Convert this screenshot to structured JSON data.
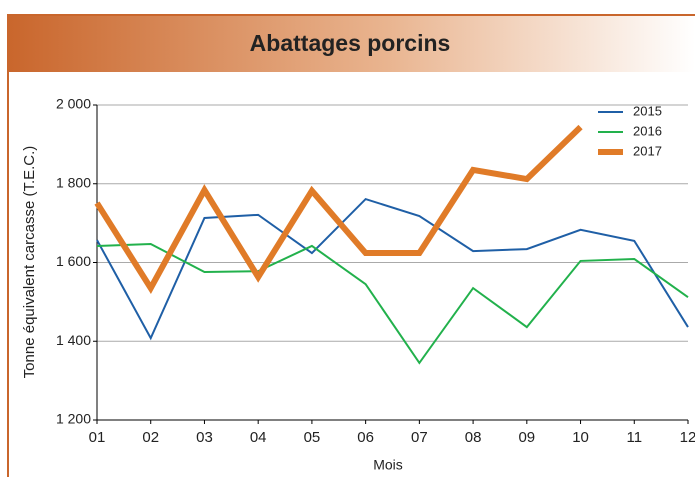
{
  "chart_data": {
    "type": "line",
    "title": "Abattages porcins",
    "x_label": "Mois",
    "y_label": "Tonne équivalent carcasse (T.E.C.)",
    "categories": [
      "01",
      "02",
      "03",
      "04",
      "05",
      "06",
      "07",
      "08",
      "09",
      "10",
      "11",
      "12"
    ],
    "series": [
      {
        "name": "2015",
        "color": "#1f5fa6",
        "width": 2,
        "values": [
          1657,
          1408,
          1713,
          1721,
          1624,
          1761,
          1718,
          1629,
          1634,
          1683,
          1655,
          1436
        ]
      },
      {
        "name": "2016",
        "color": "#22b14c",
        "width": 2,
        "values": [
          1642,
          1647,
          1576,
          1578,
          1642,
          1545,
          1345,
          1535,
          1436,
          1604,
          1609,
          1512
        ]
      },
      {
        "name": "2017",
        "color": "#e07b28",
        "width": 6,
        "values": [
          1751,
          1535,
          1784,
          1563,
          1782,
          1624,
          1624,
          1835,
          1812,
          1944,
          null,
          null
        ]
      }
    ],
    "ylim": [
      1200,
      2000
    ],
    "yticks": [
      {
        "value": 1200,
        "label": "1 200"
      },
      {
        "value": 1400,
        "label": "1 400"
      },
      {
        "value": 1600,
        "label": "1 600"
      },
      {
        "value": 1800,
        "label": "1 800"
      },
      {
        "value": 2000,
        "label": "2 000"
      }
    ],
    "grid": true,
    "legend": "top-right"
  }
}
